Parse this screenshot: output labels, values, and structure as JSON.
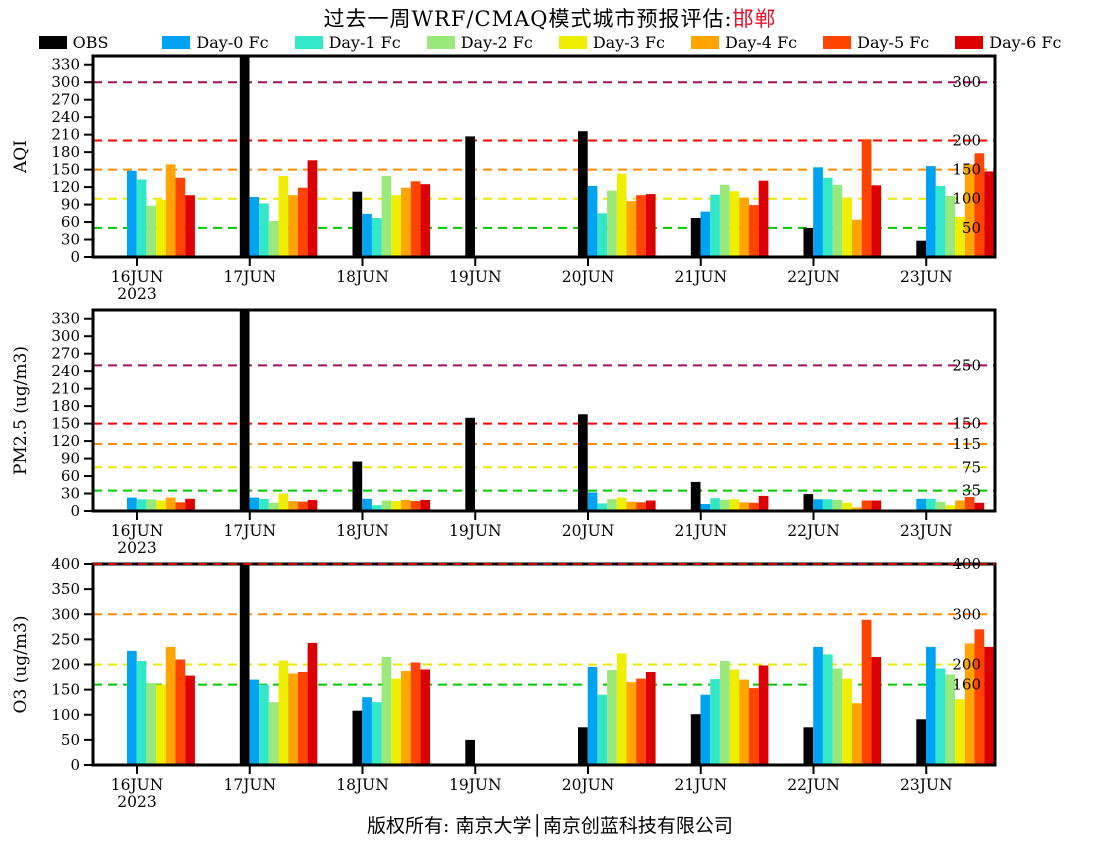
{
  "title": {
    "text": "过去一周WRF/CMAQ模式城市预报评估:",
    "highlight": "邯郸",
    "highlight_color": "#e8112d"
  },
  "caption": "版权所有: 南京大学│南京创蓝科技有限公司",
  "legend": {
    "items": [
      {
        "label": "OBS",
        "color": "#000000"
      },
      {
        "label": "Day-0 Fc",
        "color": "#00a2f2"
      },
      {
        "label": "Day-1 Fc",
        "color": "#33e8c9"
      },
      {
        "label": "Day-2 Fc",
        "color": "#98e87c"
      },
      {
        "label": "Day-3 Fc",
        "color": "#eeee00"
      },
      {
        "label": "Day-4 Fc",
        "color": "#ffa400"
      },
      {
        "label": "Day-5 Fc",
        "color": "#ff4400"
      },
      {
        "label": "Day-6 Fc",
        "color": "#dd0000"
      }
    ]
  },
  "x_axis": {
    "categories": [
      "16JUN",
      "17JUN",
      "18JUN",
      "19JUN",
      "20JUN",
      "21JUN",
      "22JUN",
      "23JUN"
    ],
    "year_label": "2023"
  },
  "chart_data": [
    {
      "type": "bar",
      "ylabel": "AQI",
      "ylim": [
        0,
        345
      ],
      "yticks": [
        0,
        30,
        60,
        90,
        120,
        150,
        180,
        210,
        240,
        270,
        300,
        330
      ],
      "grid": "threshold-dashed-lines",
      "legend_position": "top",
      "categories": [
        "16JUN",
        "17JUN",
        "18JUN",
        "19JUN",
        "20JUN",
        "21JUN",
        "22JUN",
        "23JUN"
      ],
      "series": [
        {
          "name": "OBS",
          "color": "#000000",
          "values": [
            null,
            350,
            112,
            207,
            216,
            67,
            50,
            28
          ]
        },
        {
          "name": "Day-0 Fc",
          "color": "#00a2f2",
          "values": [
            148,
            103,
            74,
            null,
            122,
            78,
            154,
            156
          ]
        },
        {
          "name": "Day-1 Fc",
          "color": "#33e8c9",
          "values": [
            133,
            92,
            67,
            null,
            75,
            107,
            136,
            122
          ]
        },
        {
          "name": "Day-2 Fc",
          "color": "#98e87c",
          "values": [
            88,
            62,
            139,
            null,
            114,
            124,
            124,
            105
          ]
        },
        {
          "name": "Day-3 Fc",
          "color": "#eeee00",
          "values": [
            98,
            139,
            106,
            null,
            143,
            113,
            102,
            69
          ]
        },
        {
          "name": "Day-4 Fc",
          "color": "#ffa400",
          "values": [
            159,
            106,
            119,
            null,
            96,
            102,
            64,
            159
          ]
        },
        {
          "name": "Day-5 Fc",
          "color": "#ff4400",
          "values": [
            136,
            119,
            130,
            null,
            106,
            89,
            202,
            178
          ]
        },
        {
          "name": "Day-6 Fc",
          "color": "#dd0000",
          "values": [
            106,
            166,
            125,
            null,
            108,
            131,
            123,
            147
          ]
        }
      ],
      "threshold_lines": [
        {
          "value": 50,
          "color": "#00c800",
          "label": "50"
        },
        {
          "value": 100,
          "color": "#e8e800",
          "label": "100"
        },
        {
          "value": 150,
          "color": "#ff8c00",
          "label": "150"
        },
        {
          "value": 200,
          "color": "#ff0000",
          "label": "200"
        },
        {
          "value": 300,
          "color": "#a01060",
          "label": "300"
        }
      ]
    },
    {
      "type": "bar",
      "ylabel": "PM2.5 (ug/m3)",
      "ylim": [
        0,
        345
      ],
      "yticks": [
        0,
        30,
        60,
        90,
        120,
        150,
        180,
        210,
        240,
        270,
        300,
        330
      ],
      "grid": "threshold-dashed-lines",
      "legend_position": "top",
      "categories": [
        "16JUN",
        "17JUN",
        "18JUN",
        "19JUN",
        "20JUN",
        "21JUN",
        "22JUN",
        "23JUN"
      ],
      "series": [
        {
          "name": "OBS",
          "color": "#000000",
          "values": [
            null,
            350,
            85,
            160,
            166,
            50,
            29,
            null
          ]
        },
        {
          "name": "Day-0 Fc",
          "color": "#00a2f2",
          "values": [
            23,
            23,
            21,
            null,
            32,
            12,
            20,
            21
          ]
        },
        {
          "name": "Day-1 Fc",
          "color": "#33e8c9",
          "values": [
            20,
            21,
            10,
            null,
            13,
            22,
            20,
            21
          ]
        },
        {
          "name": "Day-2 Fc",
          "color": "#98e87c",
          "values": [
            20,
            14,
            18,
            null,
            20,
            19,
            19,
            16
          ]
        },
        {
          "name": "Day-3 Fc",
          "color": "#eeee00",
          "values": [
            18,
            30,
            17,
            null,
            23,
            20,
            14,
            10
          ]
        },
        {
          "name": "Day-4 Fc",
          "color": "#ffa400",
          "values": [
            23,
            17,
            19,
            null,
            16,
            15,
            6,
            18
          ]
        },
        {
          "name": "Day-5 Fc",
          "color": "#ff4400",
          "values": [
            15,
            16,
            17,
            null,
            15,
            14,
            18,
            24
          ]
        },
        {
          "name": "Day-6 Fc",
          "color": "#dd0000",
          "values": [
            21,
            19,
            19,
            null,
            18,
            26,
            18,
            14
          ]
        }
      ],
      "threshold_lines": [
        {
          "value": 35,
          "color": "#00c800",
          "label": "35"
        },
        {
          "value": 75,
          "color": "#e8e800",
          "label": "75"
        },
        {
          "value": 115,
          "color": "#ff8c00",
          "label": "115"
        },
        {
          "value": 150,
          "color": "#ff0000",
          "label": "150"
        },
        {
          "value": 250,
          "color": "#a01060",
          "label": "250"
        }
      ]
    },
    {
      "type": "bar",
      "ylabel": "O3 (ug/m3)",
      "ylim": [
        0,
        400
      ],
      "yticks": [
        0,
        50,
        100,
        150,
        200,
        250,
        300,
        350,
        400
      ],
      "grid": "threshold-dashed-lines",
      "legend_position": "top",
      "categories": [
        "16JUN",
        "17JUN",
        "18JUN",
        "19JUN",
        "20JUN",
        "21JUN",
        "22JUN",
        "23JUN"
      ],
      "series": [
        {
          "name": "OBS",
          "color": "#000000",
          "values": [
            null,
            400,
            108,
            50,
            75,
            101,
            75,
            91
          ]
        },
        {
          "name": "Day-0 Fc",
          "color": "#00a2f2",
          "values": [
            227,
            170,
            135,
            null,
            195,
            140,
            235,
            235
          ]
        },
        {
          "name": "Day-1 Fc",
          "color": "#33e8c9",
          "values": [
            207,
            160,
            125,
            null,
            140,
            171,
            220,
            192
          ]
        },
        {
          "name": "Day-2 Fc",
          "color": "#98e87c",
          "values": [
            163,
            125,
            215,
            null,
            189,
            207,
            192,
            180
          ]
        },
        {
          "name": "Day-3 Fc",
          "color": "#eeee00",
          "values": [
            160,
            208,
            172,
            null,
            222,
            190,
            172,
            131
          ]
        },
        {
          "name": "Day-4 Fc",
          "color": "#ffa400",
          "values": [
            235,
            182,
            187,
            null,
            165,
            170,
            123,
            242
          ]
        },
        {
          "name": "Day-5 Fc",
          "color": "#ff4400",
          "values": [
            210,
            185,
            204,
            null,
            172,
            153,
            289,
            270
          ]
        },
        {
          "name": "Day-6 Fc",
          "color": "#dd0000",
          "values": [
            178,
            243,
            190,
            null,
            185,
            198,
            215,
            235
          ]
        }
      ],
      "threshold_lines": [
        {
          "value": 160,
          "color": "#00c800",
          "label": "160"
        },
        {
          "value": 200,
          "color": "#e8e800",
          "label": "200"
        },
        {
          "value": 300,
          "color": "#ff8c00",
          "label": "300"
        },
        {
          "value": 400,
          "color": "#cc0000",
          "label": "400"
        }
      ]
    }
  ]
}
